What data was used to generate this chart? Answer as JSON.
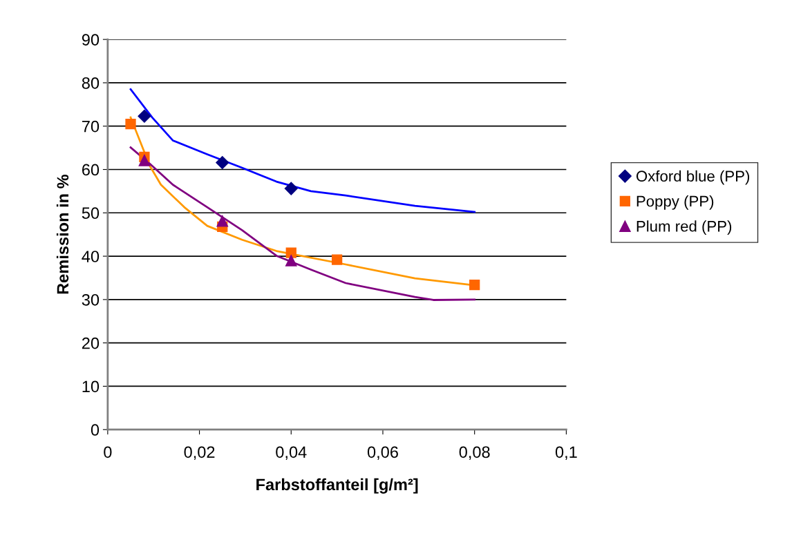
{
  "chart_data": {
    "type": "scatter",
    "xlabel": "Farbstoffanteil [g/m²]",
    "ylabel": "Remission in %",
    "xlim": [
      0,
      0.1
    ],
    "xticks": [
      0,
      {
        "value": 0.02,
        "label": "0,02"
      },
      {
        "value": 0.04,
        "label": "0,04"
      },
      {
        "value": 0.06,
        "label": "0,06"
      },
      {
        "value": 0.08,
        "label": "0,08"
      },
      {
        "value": 0.1,
        "label": "0,1"
      }
    ],
    "ylim": [
      0,
      90
    ],
    "yticks": [
      0,
      10,
      20,
      30,
      40,
      50,
      60,
      70,
      80,
      90
    ],
    "grid": "y",
    "legend": "right",
    "series": [
      {
        "type": "line",
        "color": "#0000ff",
        "x": [
          0.005,
          0.0097,
          0.0142,
          0.0217,
          0.0293,
          0.0368,
          0.0443,
          0.0519,
          0.067,
          0.08
        ],
        "values": [
          78.5,
          72.0,
          66.7,
          63.5,
          60.4,
          57.2,
          55.0,
          54.0,
          51.6,
          50.2
        ]
      },
      {
        "type": "line",
        "color": "#ff9900",
        "x": [
          0.005,
          0.0092,
          0.0116,
          0.0167,
          0.0217,
          0.0293,
          0.0368,
          0.0519,
          0.067,
          0.08
        ],
        "values": [
          72.0,
          60.8,
          56.5,
          51.3,
          47.0,
          43.8,
          41.2,
          38.1,
          34.9,
          33.3
        ]
      },
      {
        "type": "line",
        "color": "#800080",
        "x": [
          0.005,
          0.0092,
          0.0142,
          0.0217,
          0.0293,
          0.0368,
          0.0443,
          0.0519,
          0.067,
          0.071,
          0.08
        ],
        "values": [
          65.1,
          61.3,
          56.5,
          51.3,
          46.0,
          40.1,
          36.9,
          33.8,
          30.6,
          29.9,
          30.0
        ]
      },
      {
        "name": "Oxford blue (PP)",
        "color": "#000080",
        "marker": "diamond",
        "x": [
          0.008,
          0.025,
          0.04
        ],
        "values": [
          72.3,
          61.6,
          55.6
        ]
      },
      {
        "name": "Poppy (PP)",
        "color": "#ff6600",
        "marker": "square",
        "x": [
          0.005,
          0.008,
          0.025,
          0.04,
          0.05,
          0.08
        ],
        "values": [
          70.5,
          62.9,
          46.8,
          40.8,
          39.2,
          33.4
        ]
      },
      {
        "name": "Plum red (PP)",
        "color": "#800080",
        "marker": "triangle",
        "x": [
          0.008,
          0.025,
          0.04
        ],
        "values": [
          62.1,
          48.1,
          39.0
        ]
      }
    ]
  }
}
